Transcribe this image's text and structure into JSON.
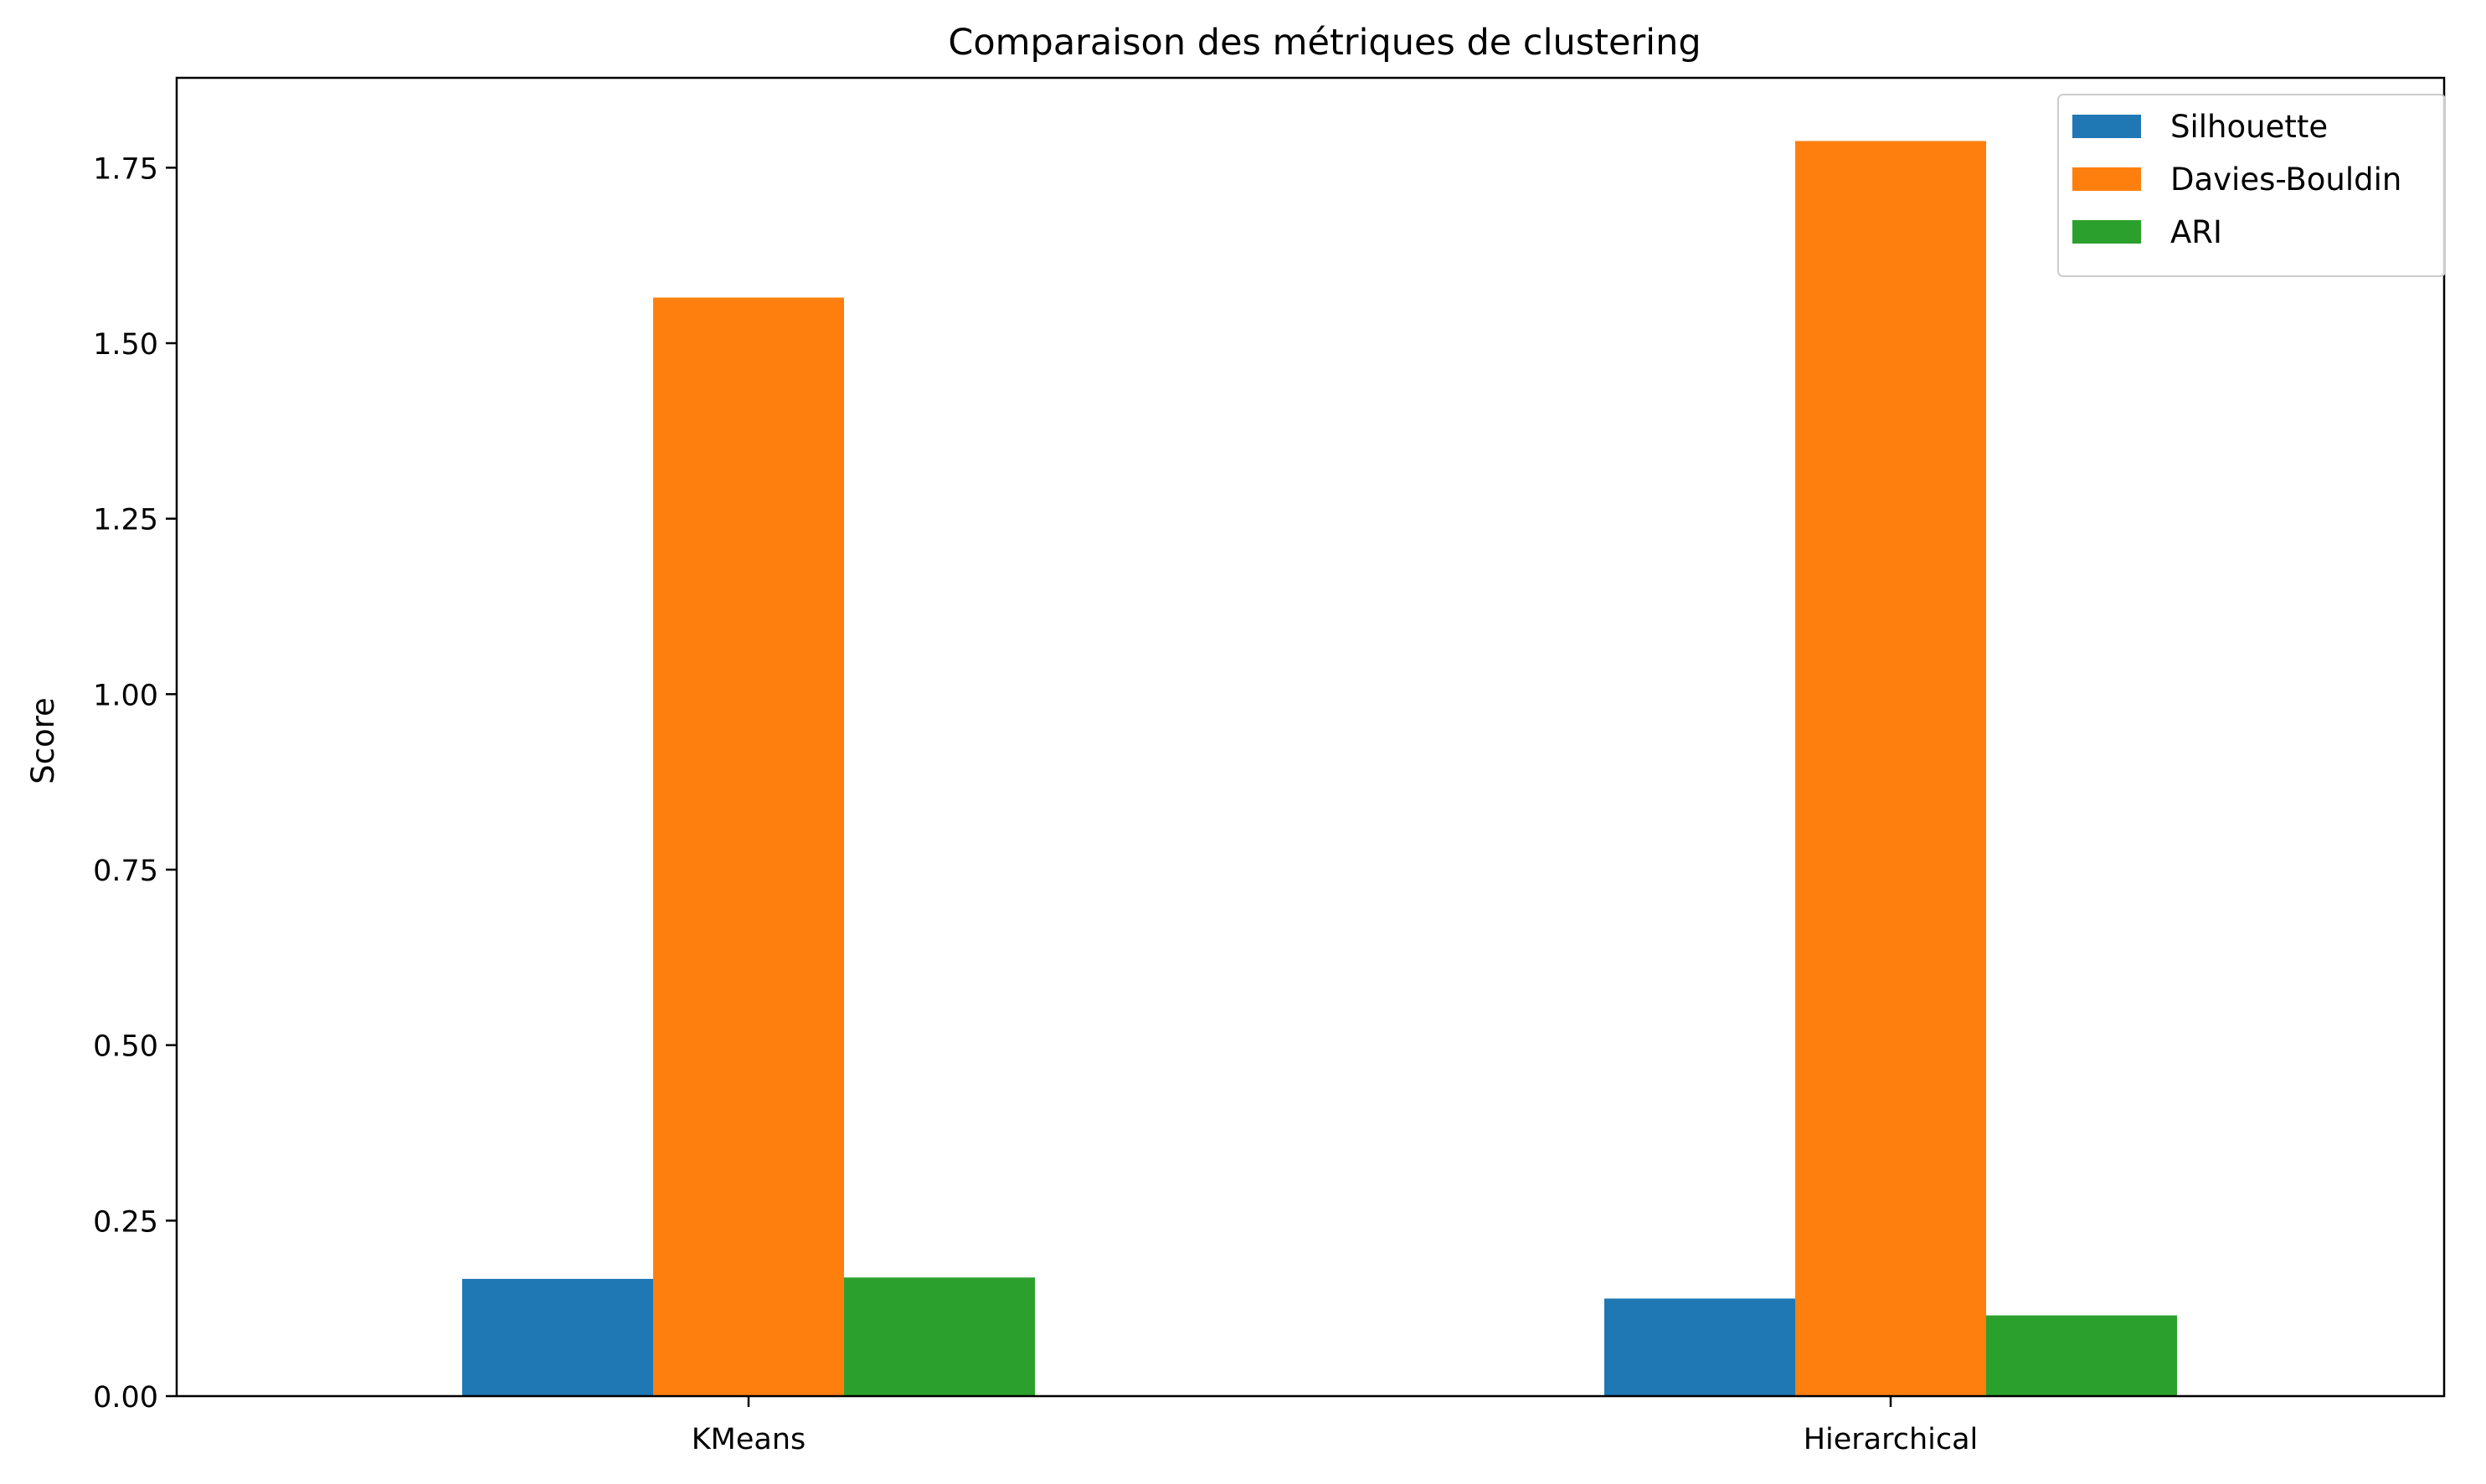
{
  "chart_data": {
    "type": "bar",
    "title": "Comparaison des métriques de clustering",
    "xlabel": "",
    "ylabel": "Score",
    "categories": [
      "KMeans",
      "Hierarchical"
    ],
    "series": [
      {
        "name": "Silhouette",
        "color": "#1f77b4",
        "values": [
          0.167,
          0.139
        ]
      },
      {
        "name": "Davies-Bouldin",
        "color": "#ff7f0e",
        "values": [
          1.565,
          1.788
        ]
      },
      {
        "name": "ARI",
        "color": "#2ca02c",
        "values": [
          0.169,
          0.115
        ]
      }
    ],
    "ylim": [
      0,
      1.878
    ],
    "yticks": [
      0.0,
      0.25,
      0.5,
      0.75,
      1.0,
      1.25,
      1.5,
      1.75
    ],
    "ytick_labels": [
      "0.00",
      "0.25",
      "0.50",
      "0.75",
      "1.00",
      "1.25",
      "1.50",
      "1.75"
    ],
    "grid": false,
    "legend_position": "top-right"
  }
}
